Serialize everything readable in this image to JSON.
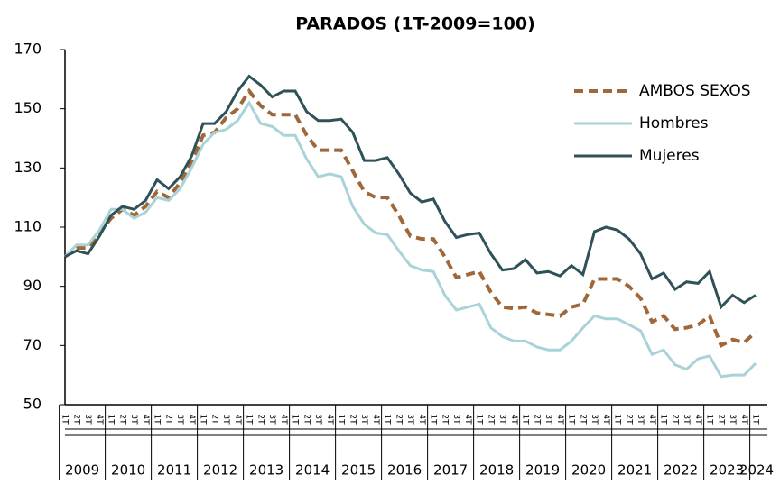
{
  "chart_data": {
    "type": "line",
    "title": "PARADOS (1T-2009=100)",
    "categories": [
      "1T",
      "2T",
      "3T",
      "4T",
      "1T",
      "2T",
      "3T",
      "4T",
      "1T",
      "2T",
      "3T",
      "4T",
      "1T",
      "2T",
      "3T",
      "4T",
      "1T",
      "2T",
      "3T",
      "4T",
      "1T",
      "2T",
      "3T",
      "4T",
      "1T",
      "2T",
      "3T",
      "4T",
      "1T",
      "2T",
      "3T",
      "4T",
      "1T",
      "2T",
      "3T",
      "4T",
      "1T",
      "2T",
      "3T",
      "4T",
      "1T",
      "2T",
      "3T",
      "4T",
      "1T",
      "2T",
      "3T",
      "4T",
      "1T",
      "2T",
      "3T",
      "4T",
      "1T",
      "2T",
      "3T",
      "4T",
      "1T",
      "2T",
      "3T",
      "4T",
      "1T"
    ],
    "years": [
      "2009",
      "2010",
      "2011",
      "2012",
      "2013",
      "2014",
      "2015",
      "2016",
      "2017",
      "2018",
      "2019",
      "2020",
      "2021",
      "2022",
      "2023",
      "2024"
    ],
    "series": [
      {
        "name": "AMBOS SEXOS",
        "color": "#a0683a",
        "dashed": true,
        "values": [
          100,
          103,
          103,
          108,
          113,
          116,
          114,
          117,
          122,
          120,
          125,
          132,
          141,
          142,
          147,
          150,
          156,
          151,
          148,
          148,
          148,
          141,
          136,
          136,
          136,
          129,
          122,
          120,
          120,
          114,
          107,
          106,
          106,
          100,
          93,
          94,
          95,
          88,
          83,
          82.5,
          83,
          81,
          80.5,
          80,
          83,
          84,
          92.5,
          92.5,
          92.5,
          90,
          86,
          78,
          80,
          75.5,
          76,
          77,
          80,
          70,
          72,
          71,
          74.5
        ]
      },
      {
        "name": "Hombres",
        "color": "#a8d3d8",
        "values": [
          100,
          104,
          104,
          109,
          116,
          116,
          113,
          115,
          120,
          119,
          123,
          130,
          138,
          142,
          143,
          146,
          152,
          145,
          144,
          141,
          141,
          133,
          127,
          128,
          127,
          117,
          111,
          108,
          107.5,
          102,
          97,
          95.5,
          95,
          87,
          82,
          83,
          84,
          76,
          73,
          71.5,
          71.5,
          69.5,
          68.5,
          68.5,
          71.5,
          76,
          80,
          79,
          79,
          77,
          75,
          67,
          68.5,
          63.5,
          62,
          65.5,
          66.5,
          59.5,
          60,
          60,
          64
        ]
      },
      {
        "name": "Mujeres",
        "color": "#2e5257",
        "values": [
          100,
          102,
          101,
          107,
          114,
          117,
          116,
          119,
          126,
          123,
          127,
          134,
          145,
          145,
          149,
          156,
          161,
          158,
          154,
          156,
          156,
          149,
          146,
          146,
          146.5,
          142,
          132.5,
          132.5,
          133.5,
          128,
          121.5,
          118.5,
          119.5,
          112,
          106.5,
          107.5,
          108,
          101,
          95.5,
          96,
          99,
          94.5,
          95,
          93.5,
          97,
          94,
          108.5,
          110,
          109,
          106,
          101,
          92.5,
          94.5,
          89,
          91.5,
          91,
          95,
          83,
          87,
          84.5,
          87
        ]
      }
    ],
    "ylim": [
      50,
      170
    ],
    "yticks": [
      50,
      70,
      90,
      110,
      130,
      150,
      170
    ],
    "legend": "top-right"
  }
}
